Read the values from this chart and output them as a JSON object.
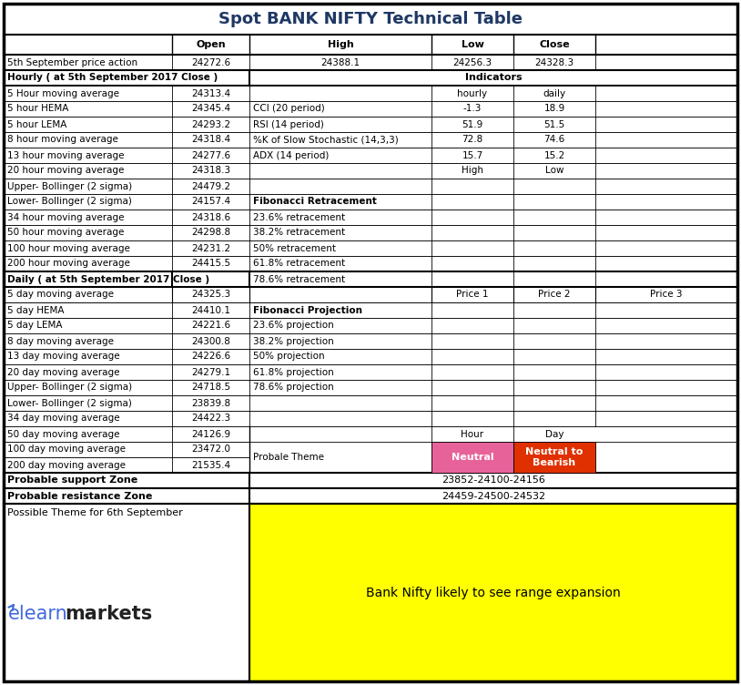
{
  "title": "Spot BANK NIFTY Technical Table",
  "title_color": "#1F3864",
  "price_action_row": [
    "5th September price action",
    "24272.6",
    "24388.1",
    "24256.3",
    "24328.3"
  ],
  "hourly_section_header": "Hourly ( at 5th September 2017 Close )",
  "indicators_header": "Indicators",
  "daily_section_header": "Daily ( at 5th September 2017 Close )",
  "hourly_rows": [
    [
      "5 Hour moving average",
      "24313.4"
    ],
    [
      "5 hour HEMA",
      "24345.4"
    ],
    [
      "5 hour LEMA",
      "24293.2"
    ],
    [
      "8 hour moving average",
      "24318.4"
    ],
    [
      "13 hour moving average",
      "24277.6"
    ],
    [
      "20 hour moving average",
      "24318.3"
    ],
    [
      "Upper- Bollinger (2 sigma)",
      "24479.2"
    ],
    [
      "Lower- Bollinger (2 sigma)",
      "24157.4"
    ],
    [
      "34 hour moving average",
      "24318.6"
    ],
    [
      "50 hour moving average",
      "24298.8"
    ],
    [
      "100 hour moving average",
      "24231.2"
    ],
    [
      "200 hour moving average",
      "24415.5"
    ]
  ],
  "daily_rows": [
    [
      "5 day moving average",
      "24325.3"
    ],
    [
      "5 day HEMA",
      "24410.1"
    ],
    [
      "5 day LEMA",
      "24221.6"
    ],
    [
      "8 day moving average",
      "24300.8"
    ],
    [
      "13 day moving average",
      "24226.6"
    ],
    [
      "20 day moving average",
      "24279.1"
    ],
    [
      "Upper- Bollinger (2 sigma)",
      "24718.5"
    ],
    [
      "Lower- Bollinger (2 sigma)",
      "23839.8"
    ],
    [
      "34 day moving average",
      "24422.3"
    ],
    [
      "50 day moving average",
      "24126.9"
    ],
    [
      "100 day moving average",
      "23472.0"
    ],
    [
      "200 day moving average",
      "21535.4"
    ]
  ],
  "indicators_rows": [
    [
      "CCI (20 period)",
      "-1.3",
      "18.9"
    ],
    [
      "RSI (14 period)",
      "51.9",
      "51.5"
    ],
    [
      "%K of Slow Stochastic (14,3,3)",
      "72.8",
      "74.6"
    ],
    [
      "ADX (14 period)",
      "15.7",
      "15.2"
    ]
  ],
  "fib_retracement_header": "Fibonacci Retracement",
  "fib_retracement_rows": [
    "23.6% retracement",
    "38.2% retracement",
    "50% retracement",
    "61.8% retracement",
    "78.6% retracement"
  ],
  "fib_projection_header": "Fibonacci Projection",
  "fib_projection_rows": [
    "23.6% projection",
    "38.2% projection",
    "50% projection",
    "61.8% projection",
    "78.6% projection"
  ],
  "probable_theme_label": "Probale Theme",
  "probable_theme_hour": "Neutral",
  "probable_theme_day": "Neutral to\nBearish",
  "probable_theme_hour_bg": "#E8629A",
  "probable_theme_day_bg": "#E03000",
  "support_zone_label": "Probable support Zone",
  "support_zone_value": "23852-24100-24156",
  "resistance_zone_label": "Probable resistance Zone",
  "resistance_zone_value": "24459-24500-24532",
  "possible_theme_label": "Possible Theme for 6th September",
  "possible_theme_text": "Bank Nifty likely to see range expansion",
  "possible_theme_bg": "#FFFF00",
  "elearn_color": "#4169E1",
  "markets_color": "#222222"
}
